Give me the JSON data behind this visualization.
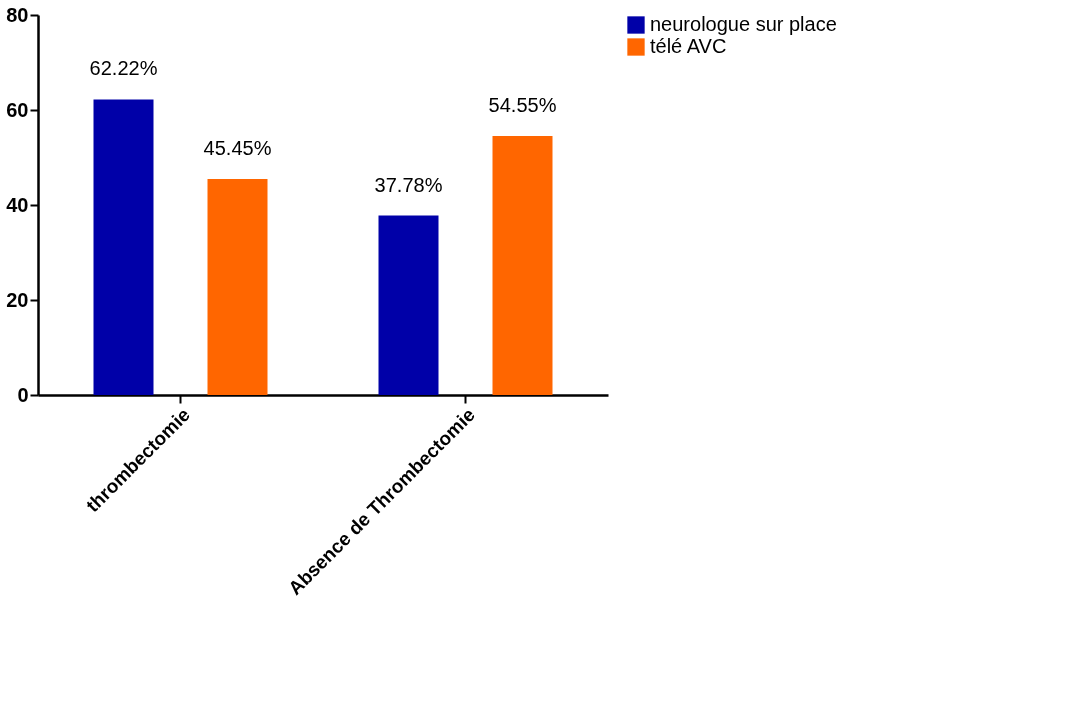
{
  "chart_data": {
    "type": "bar",
    "categories": [
      "thrombectomie",
      "Absence de Thrombectomie"
    ],
    "series": [
      {
        "name": "neurologue sur place",
        "color": "#0000a8",
        "values": [
          62.22,
          37.78
        ],
        "value_labels": [
          "62.22%",
          "37.78%"
        ]
      },
      {
        "name": "télé AVC",
        "color": "#ff6600",
        "values": [
          45.45,
          54.55
        ],
        "value_labels": [
          "45.45%",
          "54.55%"
        ]
      }
    ],
    "ylim": [
      0,
      80
    ],
    "yticks": [
      0,
      20,
      40,
      60,
      80
    ],
    "grid": false,
    "legend": "top right"
  }
}
